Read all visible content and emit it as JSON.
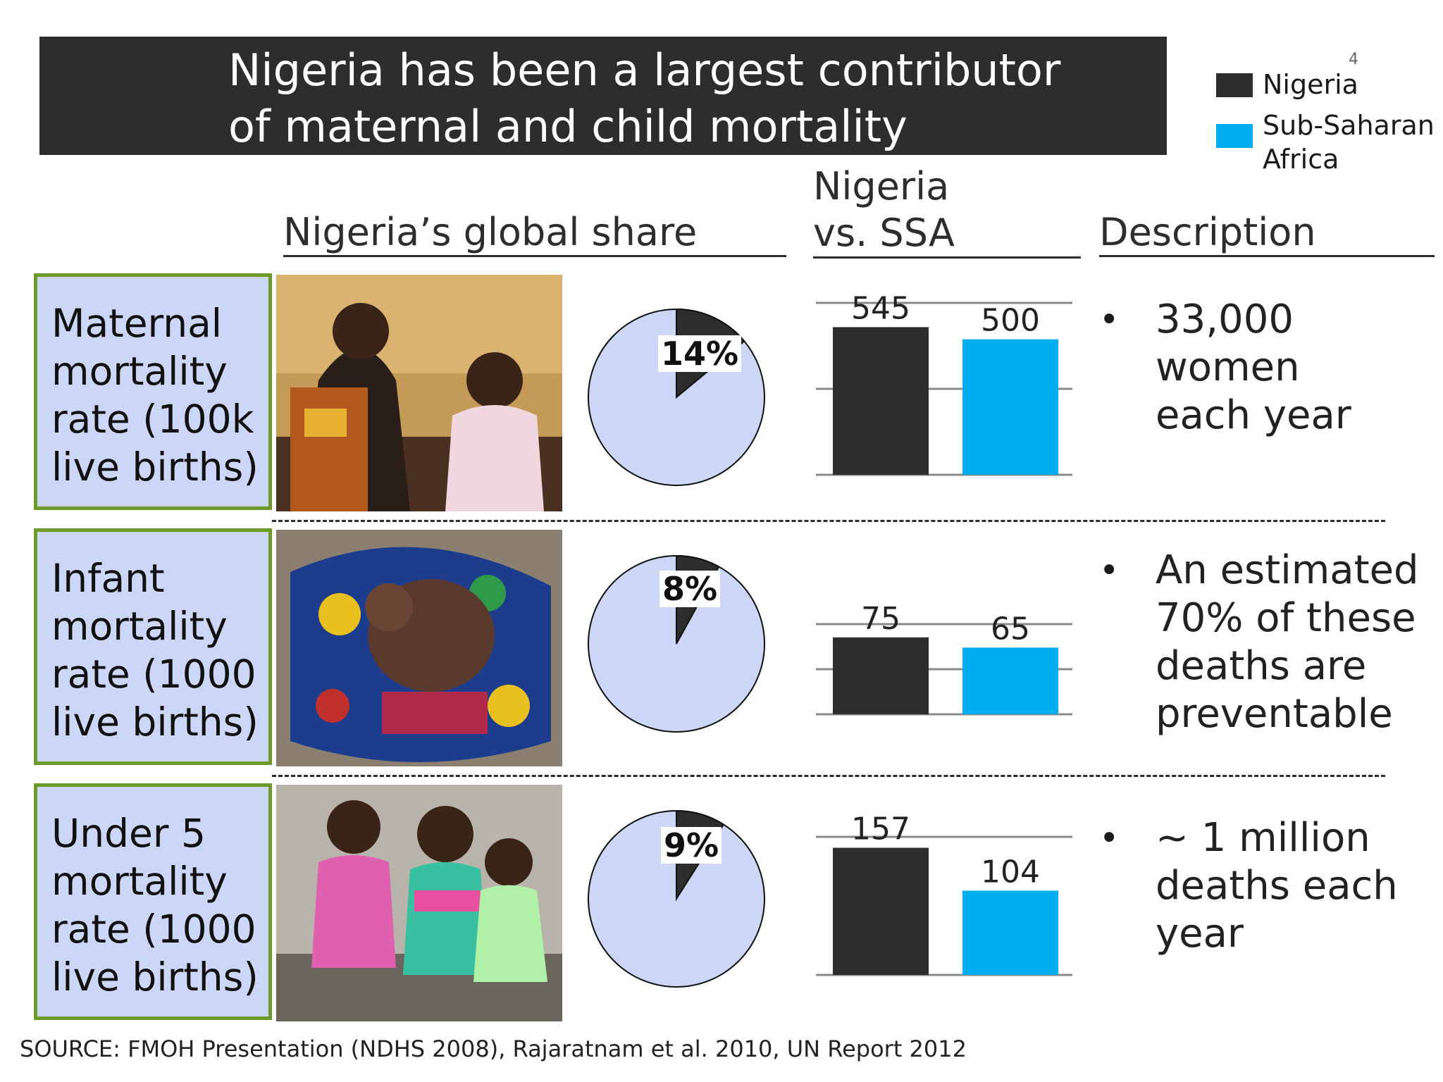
{
  "page": {
    "title_lines": [
      "Nigeria has been a largest contributor",
      "of maternal and child mortality"
    ],
    "page_number": "4",
    "source": "SOURCE: FMOH Presentation (NDHS 2008), Rajaratnam et al. 2010, UN Report 2012"
  },
  "legend": [
    {
      "label": "Nigeria",
      "color": "#2d2d2d"
    },
    {
      "label": "Sub-Saharan\nAfrica",
      "color": "#00aeef"
    }
  ],
  "headers": {
    "global_share": "Nigeria’s global share",
    "vs_ssa": "Nigeria\nvs. SSA",
    "description": "Description"
  },
  "colors": {
    "nigeria": "#2d2d2d",
    "ssa": "#00aeef",
    "pie_rest": "#ccd6f6",
    "label_box_border": "#6e9a2a"
  },
  "rows": [
    {
      "label": "Maternal\nmortality\nrate (100k\nlive births)",
      "photo_icon": "mother-and-child-photo",
      "description": "33,000 women\neach year"
    },
    {
      "label": "Infant\nmortality\nrate (1000\nlive births)",
      "photo_icon": "newborn-baby-photo",
      "description": "An estimated\n70% of these\ndeaths are\npreventable"
    },
    {
      "label": "Under 5\nmortality\nrate (1000\nlive births)",
      "photo_icon": "three-children-photo",
      "description": "~ 1 million\ndeaths each\nyear"
    }
  ],
  "chart_data": [
    {
      "type": "pie",
      "slices": [
        {
          "name": "Nigeria",
          "value": 14
        },
        {
          "name": "Rest of world",
          "value": 86
        }
      ],
      "data_labels": [
        "14%"
      ]
    },
    {
      "type": "bar",
      "categories": [
        "Nigeria",
        "Sub-Saharan Africa"
      ],
      "values": [
        545,
        500
      ],
      "data_labels": [
        "545",
        "500"
      ],
      "ylim": [
        0,
        650
      ],
      "grid": true
    },
    {
      "type": "pie",
      "slices": [
        {
          "name": "Nigeria",
          "value": 8
        },
        {
          "name": "Rest of world",
          "value": 92
        }
      ],
      "data_labels": [
        "8%"
      ]
    },
    {
      "type": "bar",
      "categories": [
        "Nigeria",
        "Sub-Saharan Africa"
      ],
      "values": [
        75,
        65
      ],
      "data_labels": [
        "75",
        "65"
      ],
      "ylim": [
        0,
        125
      ],
      "grid": true
    },
    {
      "type": "pie",
      "slices": [
        {
          "name": "Nigeria",
          "value": 9
        },
        {
          "name": "Rest of world",
          "value": 91
        }
      ],
      "data_labels": [
        "9%"
      ]
    },
    {
      "type": "bar",
      "categories": [
        "Nigeria",
        "Sub-Saharan Africa"
      ],
      "values": [
        157,
        104
      ],
      "data_labels": [
        "157",
        "104"
      ],
      "ylim": [
        0,
        200
      ],
      "grid": true
    }
  ]
}
